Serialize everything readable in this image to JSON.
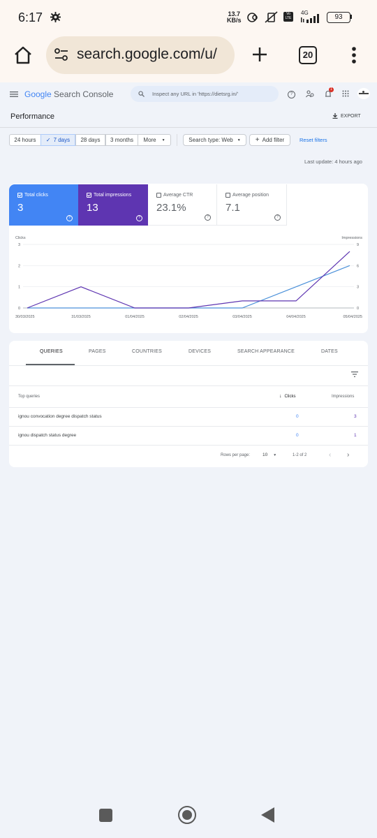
{
  "status_bar": {
    "time": "6:17",
    "speed_value": "13.7",
    "speed_unit": "KB/s",
    "volte": "Vo LTE",
    "network": "4G",
    "battery": "93"
  },
  "browser": {
    "url": "search.google.com/u/",
    "tab_count": "20"
  },
  "gsc": {
    "logo_google": "Google",
    "logo_product": "Search Console",
    "inspect_placeholder": "Inspect any URL in 'https://dietsrg.in/'",
    "page_title": "Performance",
    "export_label": "EXPORT",
    "date_chips": [
      "24 hours",
      "7 days",
      "28 days",
      "3 months",
      "More"
    ],
    "search_type": "Search type: Web",
    "add_filter": "Add filter",
    "reset_filters": "Reset filters",
    "last_update": "Last update: 4 hours ago",
    "notification_badge": "1"
  },
  "metrics": [
    {
      "label": "Total clicks",
      "value": "3",
      "checked": true,
      "color": "#4285f4"
    },
    {
      "label": "Total impressions",
      "value": "13",
      "checked": true,
      "color": "#5e35b1"
    },
    {
      "label": "Average CTR",
      "value": "23.1%",
      "checked": false
    },
    {
      "label": "Average position",
      "value": "7.1",
      "checked": false
    }
  ],
  "chart_data": {
    "type": "line",
    "left_axis_label": "Clicks",
    "right_axis_label": "Impressions",
    "x": [
      "30/03/2025",
      "31/03/2025",
      "01/04/2025",
      "02/04/2025",
      "03/04/2025",
      "04/04/2025",
      "05/04/2025"
    ],
    "left_ticks": [
      "3",
      "2",
      "1",
      "0"
    ],
    "right_ticks": [
      "9",
      "6",
      "3",
      "0"
    ],
    "ylim_left": [
      0,
      3
    ],
    "ylim_right": [
      0,
      9
    ],
    "series": [
      {
        "name": "Clicks",
        "axis": "left",
        "color": "#4a90d9",
        "values": [
          0,
          0,
          0,
          0,
          0,
          1,
          2
        ]
      },
      {
        "name": "Impressions",
        "axis": "right",
        "color": "#5e35b1",
        "values": [
          0,
          3,
          0,
          0,
          1,
          1,
          8
        ]
      }
    ]
  },
  "tabs": [
    "QUERIES",
    "PAGES",
    "COUNTRIES",
    "DEVICES",
    "SEARCH APPEARANCE",
    "DATES"
  ],
  "table": {
    "headers": [
      "Top queries",
      "Clicks",
      "Impressions"
    ],
    "rows": [
      {
        "query": "ignou convocation degree dispatch status",
        "clicks": "0",
        "impressions": "3"
      },
      {
        "query": "ignou dispatch status degree",
        "clicks": "0",
        "impressions": "1"
      }
    ],
    "rows_per_page_label": "Rows per page:",
    "rows_per_page": "10",
    "pagination": "1-2 of 2"
  }
}
